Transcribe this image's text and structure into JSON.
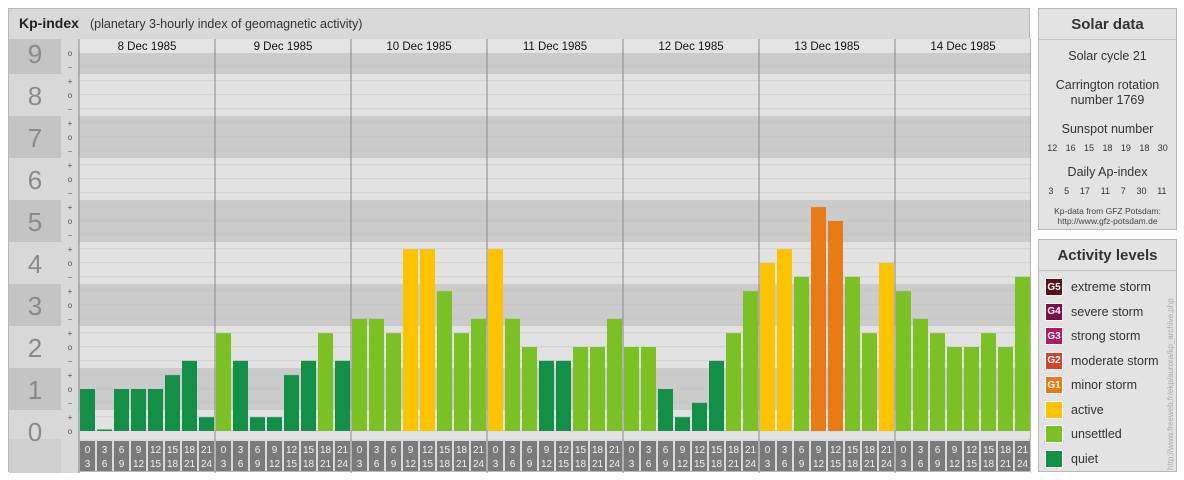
{
  "header": {
    "title": "Kp-index",
    "subtitle": "(planetary 3-hourly index of geomagnetic activity)"
  },
  "chart_data": {
    "type": "bar",
    "title": "Kp-index",
    "subtitle": "(planetary 3-hourly index of geomagnetic activity)",
    "ylim": [
      0,
      9
    ],
    "y_major_ticks": [
      "0",
      "1",
      "2",
      "3",
      "4",
      "5",
      "6",
      "7",
      "8",
      "9"
    ],
    "y_minor_ticks": [
      "o",
      "+",
      "−"
    ],
    "days": [
      "8 Dec 1985",
      "9 Dec 1985",
      "10 Dec 1985",
      "11 Dec 1985",
      "12 Dec 1985",
      "13 Dec 1985",
      "14 Dec 1985"
    ],
    "intervals": [
      [
        "0",
        "3"
      ],
      [
        "3",
        "6"
      ],
      [
        "6",
        "9"
      ],
      [
        "9",
        "12"
      ],
      [
        "12",
        "15"
      ],
      [
        "15",
        "18"
      ],
      [
        "18",
        "21"
      ],
      [
        "21",
        "24"
      ]
    ],
    "values": [
      [
        1.0,
        0.0,
        1.0,
        1.0,
        1.0,
        1.33,
        1.67,
        0.33
      ],
      [
        2.33,
        1.67,
        0.33,
        0.33,
        1.33,
        1.67,
        2.33,
        1.67
      ],
      [
        2.67,
        2.67,
        2.33,
        4.33,
        4.33,
        3.33,
        2.33,
        2.67
      ],
      [
        4.33,
        2.67,
        2.0,
        1.67,
        1.67,
        2.0,
        2.0,
        2.67
      ],
      [
        2.0,
        2.0,
        1.0,
        0.33,
        0.67,
        1.67,
        2.33,
        3.33
      ],
      [
        4.0,
        4.33,
        3.67,
        5.33,
        5.0,
        3.67,
        2.33,
        4.0
      ],
      [
        3.33,
        2.67,
        2.33,
        2.0,
        2.0,
        2.33,
        2.0,
        3.67
      ]
    ],
    "level_colors": {
      "quiet": "#138f47",
      "unsettled": "#7bc125",
      "active": "#fcc300",
      "minor_storm": "#e87b16"
    }
  },
  "solar": {
    "title": "Solar data",
    "cycle": "Solar cycle 21",
    "carrington_line1": "Carrington rotation",
    "carrington_line2": "number 1769",
    "sunspot_label": "Sunspot number",
    "sunspots": [
      "12",
      "16",
      "15",
      "18",
      "19",
      "18",
      "30"
    ],
    "ap_label": "Daily Ap-index",
    "ap": [
      "3",
      "5",
      "17",
      "11",
      "7",
      "30",
      "11"
    ],
    "credit_line1": "Kp-data from GFZ Potsdam:",
    "credit_line2": "http://www.gfz-potsdam.de"
  },
  "activity": {
    "title": "Activity levels",
    "levels": [
      {
        "badge": "G5",
        "label": "extreme storm",
        "color": "#5a0f1e"
      },
      {
        "badge": "G4",
        "label": "severe storm",
        "color": "#7d1042"
      },
      {
        "badge": "G3",
        "label": "strong storm",
        "color": "#b11a5c"
      },
      {
        "badge": "G2",
        "label": "moderate storm",
        "color": "#d2432c"
      },
      {
        "badge": "G1",
        "label": "minor storm",
        "color": "#e87b16"
      },
      {
        "badge": "",
        "label": "active",
        "color": "#fcc300"
      },
      {
        "badge": "",
        "label": "unsettled",
        "color": "#7bc125"
      },
      {
        "badge": "",
        "label": "quiet",
        "color": "#138f47"
      }
    ]
  },
  "watermark": "http://www.freeweb.fr/ekp/aurora/kp_archive.php"
}
